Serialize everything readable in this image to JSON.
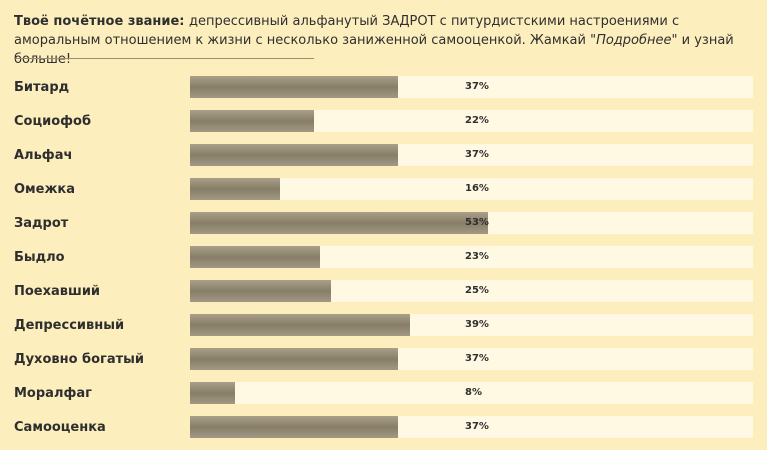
{
  "header": {
    "title_prefix": "Твоё почётное звание",
    "colon": ": ",
    "text_before": "депрессивный альфанутый ЗАДРОТ с питурдистскими настроениями с аморальным отношением к жизни с несколько заниженной самооценкой. Жамкай \"",
    "link_text": "Подробнее",
    "text_after": "\" и узнай больше!"
  },
  "colors": {
    "background": "#fdeebe",
    "track": "#fff8e2",
    "bar": "#8f866f"
  },
  "results": [
    {
      "label": "Битард",
      "value": 37,
      "display": "37%"
    },
    {
      "label": "Социофоб",
      "value": 22,
      "display": "22%"
    },
    {
      "label": "Альфач",
      "value": 37,
      "display": "37%"
    },
    {
      "label": "Омежка",
      "value": 16,
      "display": "16%"
    },
    {
      "label": "Задрот",
      "value": 53,
      "display": "53%"
    },
    {
      "label": "Быдло",
      "value": 23,
      "display": "23%"
    },
    {
      "label": "Поехавший",
      "value": 25,
      "display": "25%"
    },
    {
      "label": "Депрессивный",
      "value": 39,
      "display": "39%"
    },
    {
      "label": "Духовно богатый",
      "value": 37,
      "display": "37%"
    },
    {
      "label": "Моралфаг",
      "value": 8,
      "display": "8%"
    },
    {
      "label": "Самооценка",
      "value": 37,
      "display": "37%"
    }
  ]
}
